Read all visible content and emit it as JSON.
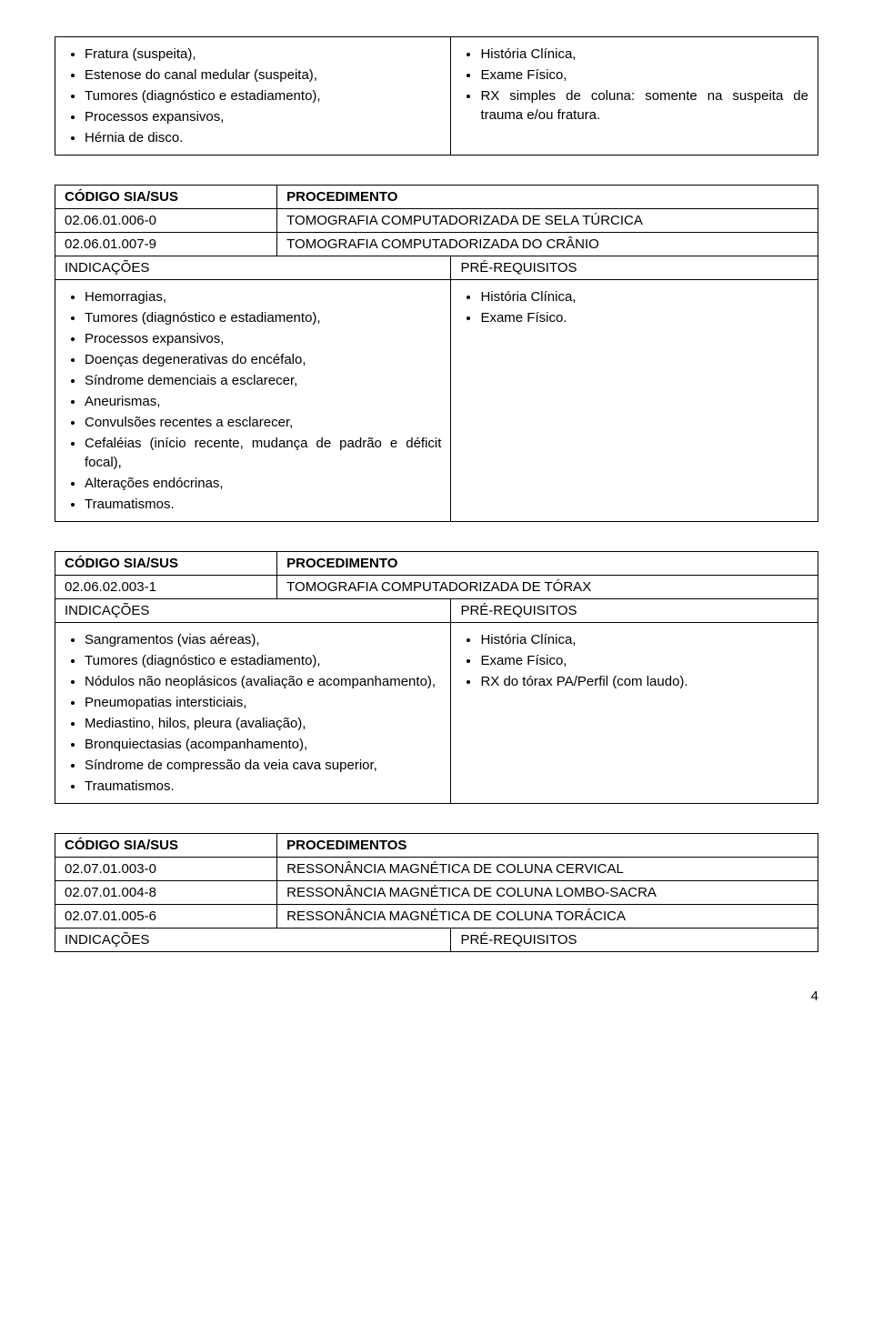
{
  "section1": {
    "left_items": [
      "Fratura (suspeita),",
      "Estenose do canal medular (suspeita),",
      "Tumores (diagnóstico e estadiamento),",
      "Processos expansivos,",
      "Hérnia de  disco."
    ],
    "right_items": [
      "História Clínica,",
      "Exame Físico,",
      "RX simples de coluna: somente na suspeita de trauma e/ou fratura."
    ]
  },
  "section2": {
    "header_code": "CÓDIGO SIA/SUS",
    "header_proc": "PROCEDIMENTO",
    "rows": [
      {
        "code": "02.06.01.006-0",
        "desc": "TOMOGRAFIA COMPUTADORIZADA DE SELA TÚRCICA"
      },
      {
        "code": "02.06.01.007-9",
        "desc": "TOMOGRAFIA COMPUTADORIZADA DO CRÂNIO"
      }
    ],
    "ind_label": "INDICAÇÕES",
    "pre_label": "PRÉ-REQUISITOS",
    "ind_items": [
      "Hemorragias,",
      "Tumores (diagnóstico e estadiamento),",
      "Processos expansivos,",
      "Doenças degenerativas do encéfalo,",
      "Síndrome demenciais a esclarecer,",
      "Aneurismas,",
      "Convulsões recentes a esclarecer,",
      "Cefaléias (início recente, mudança de padrão e déficit focal),",
      "Alterações endócrinas,",
      "Traumatismos."
    ],
    "pre_items": [
      "História Clínica,",
      "Exame Físico."
    ]
  },
  "section3": {
    "header_code": "CÓDIGO SIA/SUS",
    "header_proc": "PROCEDIMENTO",
    "rows": [
      {
        "code": "02.06.02.003-1",
        "desc": "TOMOGRAFIA COMPUTADORIZADA DE TÓRAX"
      }
    ],
    "ind_label": "INDICAÇÕES",
    "pre_label": "PRÉ-REQUISITOS",
    "ind_items": [
      "Sangramentos (vias aéreas),",
      "Tumores (diagnóstico e estadiamento),",
      "Nódulos não neoplásicos (avaliação e acompanhamento),",
      "Pneumopatias intersticiais,",
      "Mediastino, hilos, pleura (avaliação),",
      "Bronquiectasias (acompanhamento),",
      "Síndrome de compressão da veia cava superior,",
      "Traumatismos."
    ],
    "pre_items": [
      "História Clínica,",
      "Exame Físico,",
      "RX do tórax PA/Perfil (com laudo)."
    ]
  },
  "section4": {
    "header_code": "CÓDIGO SIA/SUS",
    "header_proc": "PROCEDIMENTOS",
    "rows": [
      {
        "code": "02.07.01.003-0",
        "desc": "RESSONÂNCIA MAGNÉTICA DE COLUNA CERVICAL"
      },
      {
        "code": "02.07.01.004-8",
        "desc": "RESSONÂNCIA MAGNÉTICA DE COLUNA LOMBO-SACRA"
      },
      {
        "code": "02.07.01.005-6",
        "desc": "RESSONÂNCIA MAGNÉTICA DE COLUNA TORÁCICA"
      }
    ],
    "ind_label": "INDICAÇÕES",
    "pre_label": "PRÉ-REQUISITOS"
  },
  "page_number": "4"
}
